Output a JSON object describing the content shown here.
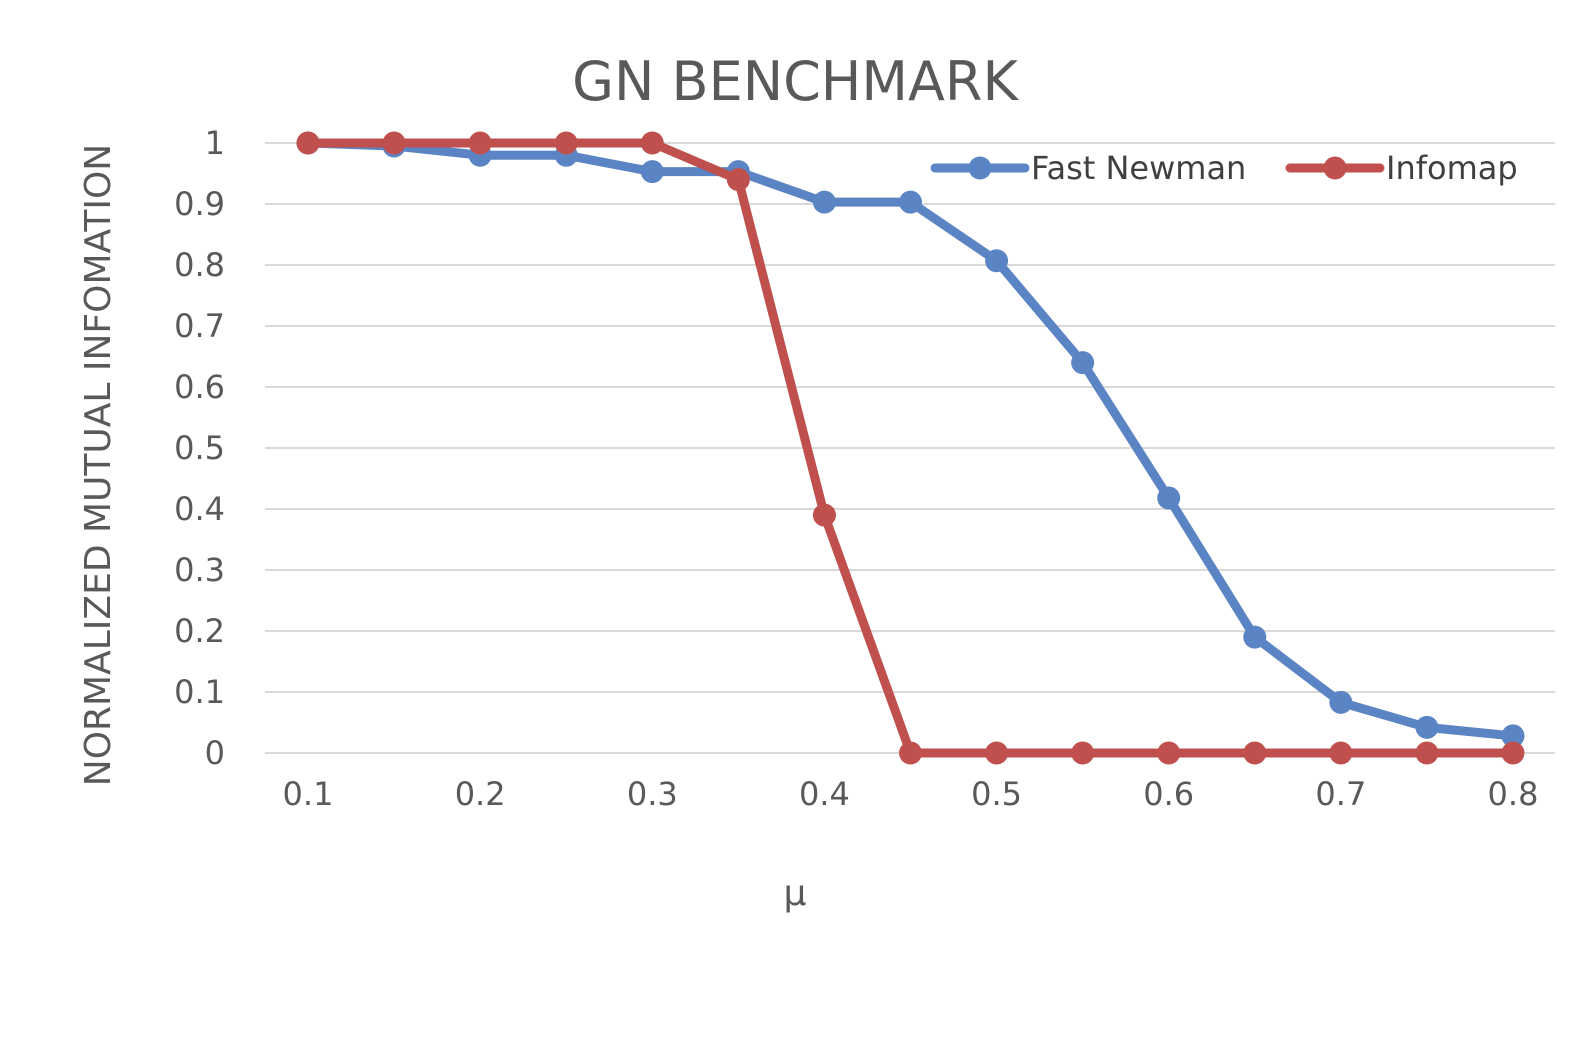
{
  "chart_data": {
    "type": "line",
    "title": "GN BENCHMARK",
    "xlabel": "μ",
    "ylabel": "NORMALIZED MUTUAL INFOMATION",
    "x": [
      0.1,
      0.15,
      0.2,
      0.25,
      0.3,
      0.35,
      0.4,
      0.45,
      0.5,
      0.55,
      0.6,
      0.65,
      0.7,
      0.75,
      0.8
    ],
    "xticks": [
      "0.1",
      "0.2",
      "0.3",
      "0.4",
      "0.5",
      "0.6",
      "0.7",
      "0.8"
    ],
    "yticks": [
      "0",
      "0.1",
      "0.2",
      "0.3",
      "0.4",
      "0.5",
      "0.6",
      "0.7",
      "0.8",
      "0.9",
      "1"
    ],
    "xlim": [
      0.1,
      0.8
    ],
    "ylim": [
      0,
      1
    ],
    "grid": true,
    "legend_position": "top-right",
    "series": [
      {
        "name": "Fast Newman",
        "color": "#5b84c4",
        "values": [
          1.0,
          0.995,
          0.98,
          0.98,
          0.953,
          0.953,
          0.903,
          0.903,
          0.807,
          0.64,
          0.418,
          0.19,
          0.083,
          0.042,
          0.028
        ]
      },
      {
        "name": "Infomap",
        "color": "#bf504d",
        "values": [
          1.0,
          1.0,
          1.0,
          1.0,
          1.0,
          0.94,
          0.39,
          0.0,
          0.0,
          0.0,
          0.0,
          0.0,
          0.0,
          0.0,
          0.0
        ]
      }
    ]
  }
}
